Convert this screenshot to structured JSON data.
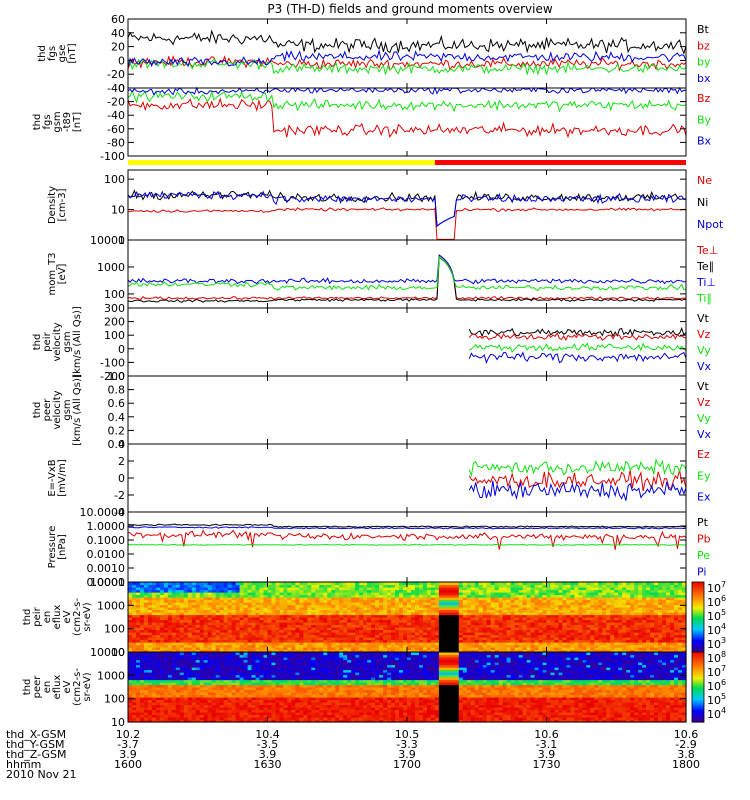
{
  "title": "P3 (TH-D) fields and ground moments overview",
  "date": "2010 Nov 21",
  "colors": {
    "black": "#000000",
    "red": "#e00000",
    "green": "#10e010",
    "blue": "#0000e0",
    "yellow": "#ffff00",
    "bar_red": "#ff0000",
    "spec_zero": "#000000"
  },
  "ephemeris": {
    "row_labels": [
      "thd_X-GSM",
      "thd_Y-GSM",
      "thd_Z-GSM",
      "hhmm"
    ],
    "columns": [
      {
        "values": [
          "10.2",
          "-3.7",
          "3.9",
          "1600"
        ]
      },
      {
        "values": [
          "10.4",
          "-3.5",
          "3.9",
          "1630"
        ]
      },
      {
        "values": [
          "10.5",
          "-3.3",
          "3.9",
          "1700"
        ]
      },
      {
        "values": [
          "10.6",
          "-3.1",
          "3.9",
          "1730"
        ]
      },
      {
        "values": [
          "10.6",
          "-2.9",
          "3.8",
          "1800"
        ]
      }
    ]
  },
  "chart_data": [
    {
      "id": "fgs_gse",
      "type": "line",
      "ylabel": [
        "thd",
        "fgs",
        "gse",
        "[nT]"
      ],
      "ylim": [
        -40,
        60
      ],
      "ticks": [
        "-40",
        "-20",
        "0",
        "20",
        "40",
        "60"
      ],
      "tick_values": [
        -40,
        -20,
        0,
        20,
        40,
        60
      ],
      "series": [
        {
          "name": "Bt",
          "color": "black",
          "pre": 32,
          "post": 22,
          "noise": 8
        },
        {
          "name": "bz",
          "color": "red",
          "pre": -2,
          "post": -5,
          "noise": 6
        },
        {
          "name": "by",
          "color": "green",
          "pre": -5,
          "post": -12,
          "noise": 6
        },
        {
          "name": "bx",
          "color": "blue",
          "pre": -3,
          "post": 5,
          "noise": 6
        }
      ]
    },
    {
      "id": "fgs_gsm",
      "type": "line",
      "ylabel": [
        "thd",
        "fgs",
        "gsm",
        "-t89",
        "[nT]"
      ],
      "ylim": [
        -100,
        0
      ],
      "ticks": [
        "-100",
        "-80",
        "-60",
        "-40",
        "-20",
        "0"
      ],
      "tick_values": [
        -100,
        -80,
        -60,
        -40,
        -20,
        0
      ],
      "series": [
        {
          "name": "Bz",
          "color": "red",
          "pre": -25,
          "post": -62,
          "noise": 7
        },
        {
          "name": "By",
          "color": "green",
          "pre": -12,
          "post": -25,
          "noise": 6
        },
        {
          "name": "Bx",
          "color": "blue",
          "pre": -5,
          "post": -3,
          "noise": 4
        }
      ]
    },
    {
      "id": "density",
      "type": "line",
      "log": true,
      "ylabel": [
        "Density",
        "[cm-3]"
      ],
      "ylim": [
        1,
        200
      ],
      "ticks": [
        "1",
        "10",
        "100"
      ],
      "tick_values": [
        1,
        10,
        100
      ],
      "series": [
        {
          "name": "Ne",
          "color": "red",
          "pre": 9,
          "post": 10,
          "noise": 0.05
        },
        {
          "name": "Ni",
          "color": "black",
          "pre": 30,
          "post": 25,
          "noise": 0.15
        },
        {
          "name": "Npot",
          "color": "blue",
          "pre": 30,
          "post": 22,
          "noise": 0.15
        }
      ]
    },
    {
      "id": "temperature",
      "type": "line",
      "log": true,
      "ylabel": [
        "mom_T3",
        "[eV]"
      ],
      "ylim": [
        30,
        10000
      ],
      "ticks": [
        "100",
        "1000",
        "10000"
      ],
      "tick_values": [
        100,
        1000,
        10000
      ],
      "series": [
        {
          "name": "Te⊥",
          "color": "red",
          "pre": 70,
          "post": 70,
          "noise": 0.05,
          "spike": 3000
        },
        {
          "name": "Te∥",
          "color": "black",
          "pre": 55,
          "post": 60,
          "noise": 0.05,
          "spike": 2500
        },
        {
          "name": "Ti⊥",
          "color": "blue",
          "pre": 300,
          "post": 300,
          "noise": 0.1,
          "spike": 3000
        },
        {
          "name": "Ti∥",
          "color": "green",
          "pre": 230,
          "post": 170,
          "noise": 0.1,
          "spike": 2600
        }
      ]
    },
    {
      "id": "peir_velocity",
      "type": "line",
      "ylabel": [
        "thd",
        "peir",
        "velocity",
        "gsm",
        "[km/s (All Qs)]"
      ],
      "ylim": [
        -200,
        300
      ],
      "ticks": [
        "-200",
        "-100",
        "0",
        "100",
        "200",
        "300"
      ],
      "tick_values": [
        -200,
        -100,
        0,
        100,
        200,
        300
      ],
      "start_fraction": 0.61,
      "series": [
        {
          "name": "Vt",
          "color": "black",
          "pre": 120,
          "post": 120,
          "noise": 25
        },
        {
          "name": "Vz",
          "color": "red",
          "pre": 90,
          "post": 90,
          "noise": 20
        },
        {
          "name": "Vy",
          "color": "green",
          "pre": 10,
          "post": 10,
          "noise": 25
        },
        {
          "name": "Vx",
          "color": "blue",
          "pre": -60,
          "post": -60,
          "noise": 30
        }
      ]
    },
    {
      "id": "peer_velocity",
      "type": "line",
      "ylabel": [
        "thd",
        "peer",
        "velocity",
        "gsm",
        "[km/s (All Qs)]"
      ],
      "ylim": [
        0,
        1
      ],
      "ticks": [
        "0.0",
        "0.2",
        "0.4",
        "0.6",
        "0.8",
        "1.0"
      ],
      "tick_values": [
        0,
        0.2,
        0.4,
        0.6,
        0.8,
        1.0
      ],
      "series": [
        {
          "name": "Vt",
          "color": "black"
        },
        {
          "name": "Vz",
          "color": "red"
        },
        {
          "name": "Vy",
          "color": "green"
        },
        {
          "name": "Vx",
          "color": "blue"
        }
      ]
    },
    {
      "id": "efield",
      "type": "line",
      "ylabel": [
        "E=-VxB",
        "[mV/m]"
      ],
      "ylim": [
        -4,
        4
      ],
      "ticks": [
        "-4",
        "-2",
        "0",
        "2",
        "4"
      ],
      "tick_values": [
        -4,
        -2,
        0,
        2,
        4
      ],
      "start_fraction": 0.61,
      "series": [
        {
          "name": "Ez",
          "color": "red",
          "pre": 0,
          "post": -0.3,
          "noise": 0.8
        },
        {
          "name": "Ey",
          "color": "green",
          "pre": 1.5,
          "post": 1.2,
          "noise": 0.7
        },
        {
          "name": "Ex",
          "color": "blue",
          "pre": -1,
          "post": -1.5,
          "noise": 0.9
        }
      ]
    },
    {
      "id": "pressure",
      "type": "line",
      "log": true,
      "ylabel": [
        "Pressure",
        "[nPa]"
      ],
      "ylim": [
        0.0001,
        10
      ],
      "ticks": [
        "0.0001",
        "0.0010",
        "0.0100",
        "0.1000",
        "1.0000",
        "10.0000"
      ],
      "tick_values": [
        0.0001,
        0.001,
        0.01,
        0.1,
        1,
        10
      ],
      "series": [
        {
          "name": "Pt",
          "color": "black",
          "pre": 1.2,
          "post": 0.9,
          "noise": 0.05
        },
        {
          "name": "Pb",
          "color": "red",
          "pre": 0.25,
          "post": 0.18,
          "noise": 0.25
        },
        {
          "name": "Pe",
          "color": "green",
          "pre": 0.045,
          "post": 0.045,
          "noise": 0.03
        },
        {
          "name": "Pi",
          "color": "blue",
          "pre": 0.8,
          "post": 0.7,
          "noise": 0.05
        }
      ]
    },
    {
      "id": "peir_spec",
      "type": "heatmap",
      "ylabel": [
        "thd",
        "peir",
        "en",
        "eflux",
        "eV",
        "(cm2-s-",
        "sr-eV)"
      ],
      "ylim": [
        10,
        10000
      ],
      "ticks": [
        "10",
        "100",
        "1000",
        "10000"
      ],
      "tick_values": [
        10,
        100,
        1000,
        10000
      ],
      "colorbar_labels": [
        "10",
        "10",
        "10",
        "10",
        "10"
      ],
      "colorbar_exponents": [
        "7",
        "6",
        "5",
        "4",
        "3"
      ],
      "colorbar_range": [
        3,
        7.5
      ]
    },
    {
      "id": "peer_spec",
      "type": "heatmap",
      "ylabel": [
        "thd",
        "peer",
        "en",
        "eflux",
        "eV",
        "(cm2-s-",
        "sr-eV)"
      ],
      "ylim": [
        10,
        10000
      ],
      "ticks": [
        "10",
        "100",
        "1000",
        "10000"
      ],
      "tick_values": [
        10,
        100,
        1000,
        10000
      ],
      "colorbar_labels": [
        "10",
        "10",
        "10",
        "10",
        "10"
      ],
      "colorbar_exponents": [
        "8",
        "7",
        "6",
        "5",
        "4"
      ],
      "colorbar_range": [
        4,
        8.5
      ]
    }
  ],
  "time": {
    "start": "1600",
    "end": "1800",
    "gap_start_fraction": 0.555,
    "gap_end_fraction": 0.585,
    "mode_change_fraction": 0.55
  }
}
